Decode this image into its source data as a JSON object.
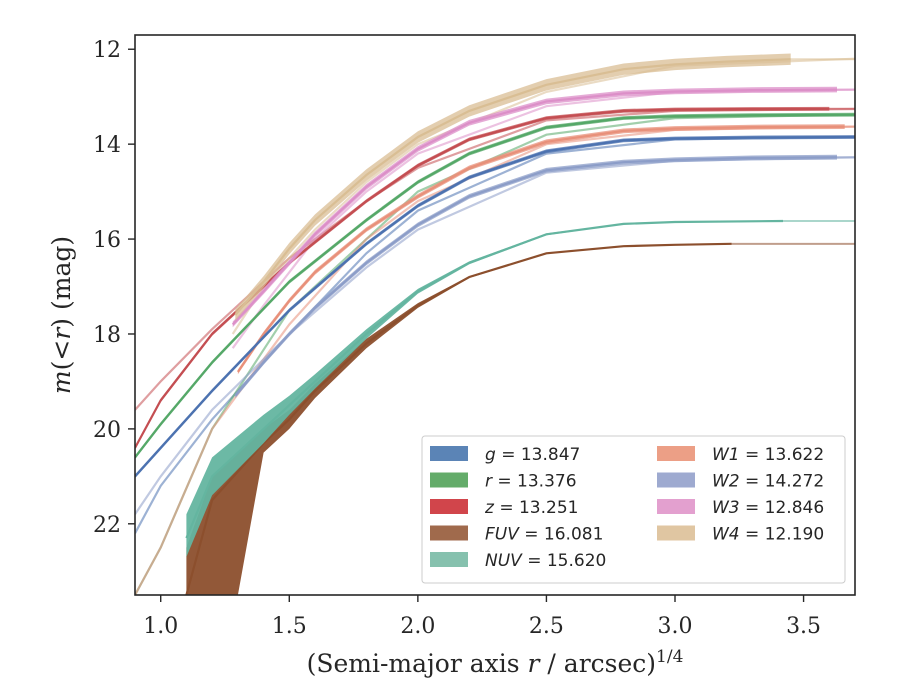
{
  "chart_data": {
    "type": "line",
    "xlabel": "(Semi-major axis r / arcsec)^{1/4}",
    "xlabel_parts": {
      "pre": "(Semi-major axis ",
      "var": "r",
      "post": " / arcsec)",
      "sup": "1/4"
    },
    "ylabel": "m(< r) (mag)",
    "ylabel_parts": {
      "var1": "m",
      "mid": "(<",
      "var2": "r",
      "post": ") (mag)"
    },
    "xlim": [
      0.9,
      3.7
    ],
    "ylim": [
      23.5,
      11.7
    ],
    "y_inverted": true,
    "grid": false,
    "legend_placement": "lower-right",
    "xticks": [
      {
        "v": 1.0,
        "label": "1.0"
      },
      {
        "v": 1.5,
        "label": "1.5"
      },
      {
        "v": 2.0,
        "label": "2.0"
      },
      {
        "v": 2.5,
        "label": "2.5"
      },
      {
        "v": 3.0,
        "label": "3.0"
      },
      {
        "v": 3.5,
        "label": "3.5"
      }
    ],
    "yticks": [
      {
        "v": 12,
        "label": "12"
      },
      {
        "v": 14,
        "label": "14"
      },
      {
        "v": 16,
        "label": "16"
      },
      {
        "v": 18,
        "label": "18"
      },
      {
        "v": 20,
        "label": "20"
      },
      {
        "v": 22,
        "label": "22"
      }
    ],
    "series": [
      {
        "name": "g",
        "value": "13.847",
        "color": "#4c72b0",
        "faint": [
          [
            0.9,
            22.2
          ],
          [
            1.0,
            21.2
          ],
          [
            1.2,
            19.8
          ],
          [
            1.5,
            18.0
          ],
          [
            1.8,
            16.3
          ],
          [
            2.0,
            15.4
          ],
          [
            2.5,
            14.2
          ],
          [
            3.0,
            13.9
          ],
          [
            3.7,
            13.85
          ]
        ],
        "main": [
          [
            0.9,
            21.0
          ],
          [
            1.0,
            20.4
          ],
          [
            1.2,
            19.2
          ],
          [
            1.5,
            17.5
          ],
          [
            1.8,
            16.1
          ],
          [
            2.0,
            15.3
          ],
          [
            2.2,
            14.7
          ],
          [
            2.5,
            14.15
          ],
          [
            2.8,
            13.92
          ],
          [
            3.0,
            13.88
          ],
          [
            3.3,
            13.86
          ],
          [
            3.7,
            13.85
          ]
        ],
        "band": 0.04,
        "ext_from": 3.7
      },
      {
        "name": "r",
        "value": "13.376",
        "color": "#55a868",
        "faint": [
          [
            0.9,
            23.5
          ],
          [
            1.0,
            22.5
          ],
          [
            1.2,
            20.0
          ],
          [
            1.5,
            17.5
          ],
          [
            1.8,
            16.0
          ],
          [
            2.0,
            15.0
          ],
          [
            2.5,
            13.8
          ],
          [
            3.0,
            13.45
          ],
          [
            3.7,
            13.38
          ]
        ],
        "main": [
          [
            0.9,
            20.6
          ],
          [
            1.0,
            19.9
          ],
          [
            1.2,
            18.6
          ],
          [
            1.5,
            16.9
          ],
          [
            1.8,
            15.6
          ],
          [
            2.0,
            14.8
          ],
          [
            2.2,
            14.2
          ],
          [
            2.5,
            13.65
          ],
          [
            2.8,
            13.45
          ],
          [
            3.0,
            13.41
          ],
          [
            3.3,
            13.39
          ],
          [
            3.7,
            13.38
          ]
        ],
        "band": 0.04,
        "ext_from": 3.7
      },
      {
        "name": "z",
        "value": "13.251",
        "color": "#c44e52",
        "faint": [
          [
            0.9,
            19.6
          ],
          [
            1.0,
            19.0
          ],
          [
            1.2,
            17.9
          ],
          [
            1.5,
            16.4
          ],
          [
            1.8,
            15.2
          ],
          [
            2.0,
            14.5
          ],
          [
            2.5,
            13.5
          ],
          [
            3.0,
            13.3
          ],
          [
            3.7,
            13.26
          ]
        ],
        "main": [
          [
            0.9,
            20.4
          ],
          [
            1.0,
            19.4
          ],
          [
            1.2,
            18.0
          ],
          [
            1.5,
            16.5
          ],
          [
            1.8,
            15.2
          ],
          [
            2.0,
            14.45
          ],
          [
            2.2,
            13.9
          ],
          [
            2.5,
            13.45
          ],
          [
            2.8,
            13.3
          ],
          [
            3.0,
            13.27
          ],
          [
            3.3,
            13.26
          ],
          [
            3.6,
            13.255
          ]
        ],
        "band": 0.04,
        "ext_from": 3.6
      },
      {
        "name": "FUV",
        "value": "16.081",
        "color": "#8c4f2d",
        "main": [
          [
            1.1,
            23.5
          ],
          [
            1.2,
            21.5
          ],
          [
            1.4,
            20.3
          ],
          [
            1.5,
            19.8
          ],
          [
            1.6,
            19.2
          ],
          [
            1.8,
            18.2
          ],
          [
            2.0,
            17.4
          ],
          [
            2.2,
            16.8
          ],
          [
            2.5,
            16.3
          ],
          [
            2.8,
            16.15
          ],
          [
            3.0,
            16.12
          ],
          [
            3.22,
            16.1
          ]
        ],
        "band_upper": [
          [
            1.1,
            22.5
          ],
          [
            1.2,
            21.0
          ],
          [
            1.4,
            20.0
          ],
          [
            1.5,
            19.6
          ],
          [
            1.6,
            19.05
          ],
          [
            1.8,
            18.1
          ],
          [
            2.0,
            17.35
          ],
          [
            2.2,
            16.78
          ],
          [
            2.5,
            16.29
          ],
          [
            2.8,
            16.15
          ],
          [
            3.0,
            16.12
          ],
          [
            3.22,
            16.1
          ]
        ],
        "band_lower": [
          [
            1.1,
            23.5
          ],
          [
            1.3,
            23.5
          ],
          [
            1.4,
            20.5
          ],
          [
            1.5,
            20.0
          ],
          [
            1.6,
            19.35
          ],
          [
            1.8,
            18.3
          ],
          [
            2.0,
            17.45
          ],
          [
            2.2,
            16.82
          ],
          [
            2.5,
            16.31
          ],
          [
            2.8,
            16.15
          ],
          [
            3.0,
            16.12
          ],
          [
            3.22,
            16.1
          ]
        ],
        "ext_from": 3.22
      },
      {
        "name": "NUV",
        "value": "15.620",
        "color": "#64b5a0",
        "main": [
          [
            1.1,
            22.3
          ],
          [
            1.2,
            21.0
          ],
          [
            1.4,
            20.0
          ],
          [
            1.5,
            19.5
          ],
          [
            1.6,
            19.0
          ],
          [
            1.8,
            18.0
          ],
          [
            2.0,
            17.1
          ],
          [
            2.2,
            16.5
          ],
          [
            2.5,
            15.9
          ],
          [
            2.8,
            15.68
          ],
          [
            3.0,
            15.64
          ],
          [
            3.42,
            15.62
          ]
        ],
        "band_upper": [
          [
            1.1,
            21.8
          ],
          [
            1.2,
            20.6
          ],
          [
            1.4,
            19.7
          ],
          [
            1.5,
            19.3
          ],
          [
            1.6,
            18.85
          ],
          [
            1.8,
            17.9
          ],
          [
            2.0,
            17.05
          ],
          [
            2.2,
            16.47
          ],
          [
            2.5,
            15.88
          ],
          [
            2.8,
            15.67
          ],
          [
            3.0,
            15.64
          ],
          [
            3.42,
            15.62
          ]
        ],
        "band_lower": [
          [
            1.1,
            22.7
          ],
          [
            1.2,
            21.4
          ],
          [
            1.4,
            20.3
          ],
          [
            1.5,
            19.7
          ],
          [
            1.6,
            19.15
          ],
          [
            1.8,
            18.1
          ],
          [
            2.0,
            17.15
          ],
          [
            2.2,
            16.53
          ],
          [
            2.5,
            15.92
          ],
          [
            2.8,
            15.69
          ],
          [
            3.0,
            15.64
          ],
          [
            3.42,
            15.62
          ]
        ],
        "ext_from": 3.42
      },
      {
        "name": "W1",
        "value": "13.622",
        "color": "#e8907a",
        "faint": [
          [
            0.9,
            23.5
          ],
          [
            1.0,
            22.5
          ],
          [
            1.2,
            20.0
          ],
          [
            1.5,
            17.8
          ],
          [
            1.8,
            16.0
          ],
          [
            2.0,
            15.2
          ],
          [
            2.5,
            14.0
          ],
          [
            3.0,
            13.7
          ],
          [
            3.7,
            13.63
          ]
        ],
        "main": [
          [
            1.3,
            18.8
          ],
          [
            1.4,
            18.0
          ],
          [
            1.5,
            17.3
          ],
          [
            1.6,
            16.7
          ],
          [
            1.8,
            15.8
          ],
          [
            2.0,
            15.1
          ],
          [
            2.2,
            14.5
          ],
          [
            2.5,
            13.95
          ],
          [
            2.8,
            13.72
          ],
          [
            3.0,
            13.67
          ],
          [
            3.3,
            13.64
          ],
          [
            3.66,
            13.63
          ]
        ],
        "band": 0.05,
        "ext_from": 3.66
      },
      {
        "name": "W2",
        "value": "14.272",
        "color": "#8c9dc8",
        "faint": [
          [
            0.9,
            21.8
          ],
          [
            1.0,
            21.0
          ],
          [
            1.2,
            19.6
          ],
          [
            1.5,
            18.0
          ],
          [
            1.8,
            16.6
          ],
          [
            2.0,
            15.8
          ],
          [
            2.5,
            14.6
          ],
          [
            3.0,
            14.35
          ],
          [
            3.7,
            14.28
          ]
        ],
        "main": [
          [
            1.29,
            19.3
          ],
          [
            1.4,
            18.6
          ],
          [
            1.5,
            18.0
          ],
          [
            1.6,
            17.45
          ],
          [
            1.8,
            16.5
          ],
          [
            2.0,
            15.7
          ],
          [
            2.2,
            15.1
          ],
          [
            2.5,
            14.55
          ],
          [
            2.8,
            14.38
          ],
          [
            3.0,
            14.33
          ],
          [
            3.3,
            14.29
          ],
          [
            3.63,
            14.275
          ]
        ],
        "band": 0.05,
        "ext_from": 3.63
      },
      {
        "name": "W3",
        "value": "12.846",
        "color": "#dc8fc8",
        "faint": [
          [
            1.28,
            18.3
          ],
          [
            1.4,
            17.4
          ],
          [
            1.6,
            16.0
          ],
          [
            1.8,
            15.0
          ],
          [
            2.0,
            14.2
          ],
          [
            2.5,
            13.2
          ],
          [
            3.0,
            12.9
          ],
          [
            3.7,
            12.85
          ]
        ],
        "main": [
          [
            1.28,
            17.8
          ],
          [
            1.4,
            17.1
          ],
          [
            1.5,
            16.5
          ],
          [
            1.6,
            15.9
          ],
          [
            1.8,
            14.9
          ],
          [
            2.0,
            14.1
          ],
          [
            2.2,
            13.55
          ],
          [
            2.5,
            13.1
          ],
          [
            2.8,
            12.93
          ],
          [
            3.0,
            12.89
          ],
          [
            3.3,
            12.86
          ],
          [
            3.63,
            12.85
          ]
        ],
        "band": 0.06,
        "ext_from": 3.63
      },
      {
        "name": "W4",
        "value": "12.190",
        "color": "#d9be94",
        "faint": [
          [
            1.28,
            18.0
          ],
          [
            1.4,
            17.0
          ],
          [
            1.6,
            15.8
          ],
          [
            1.8,
            14.8
          ],
          [
            2.0,
            14.0
          ],
          [
            2.5,
            12.9
          ],
          [
            3.0,
            12.35
          ],
          [
            3.7,
            12.2
          ]
        ],
        "main": [
          [
            1.29,
            17.6
          ],
          [
            1.4,
            16.9
          ],
          [
            1.5,
            16.2
          ],
          [
            1.6,
            15.6
          ],
          [
            1.8,
            14.65
          ],
          [
            2.0,
            13.85
          ],
          [
            2.2,
            13.3
          ],
          [
            2.5,
            12.75
          ],
          [
            2.8,
            12.42
          ],
          [
            3.0,
            12.32
          ],
          [
            3.2,
            12.26
          ],
          [
            3.45,
            12.21
          ]
        ],
        "band": 0.12,
        "ext_from": 3.45
      }
    ],
    "legend": {
      "columns": [
        [
          {
            "name": "g",
            "value": "13.847",
            "color": "#5b84b6"
          },
          {
            "name": "r",
            "value": "13.376",
            "color": "#64ac6a"
          },
          {
            "name": "z",
            "value": "13.251",
            "color": "#d1454b"
          },
          {
            "name": "FUV",
            "value": "16.081",
            "color": "#a06a4c"
          },
          {
            "name": "NUV",
            "value": "15.620",
            "color": "#86c1ae"
          }
        ],
        [
          {
            "name": "W1",
            "value": "13.622",
            "color": "#ec9f86"
          },
          {
            "name": "W2",
            "value": "14.272",
            "color": "#9eaad0"
          },
          {
            "name": "W3",
            "value": "12.846",
            "color": "#e3a0cf"
          },
          {
            "name": "W4",
            "value": "12.190",
            "color": "#e0c6a2"
          }
        ]
      ]
    }
  }
}
